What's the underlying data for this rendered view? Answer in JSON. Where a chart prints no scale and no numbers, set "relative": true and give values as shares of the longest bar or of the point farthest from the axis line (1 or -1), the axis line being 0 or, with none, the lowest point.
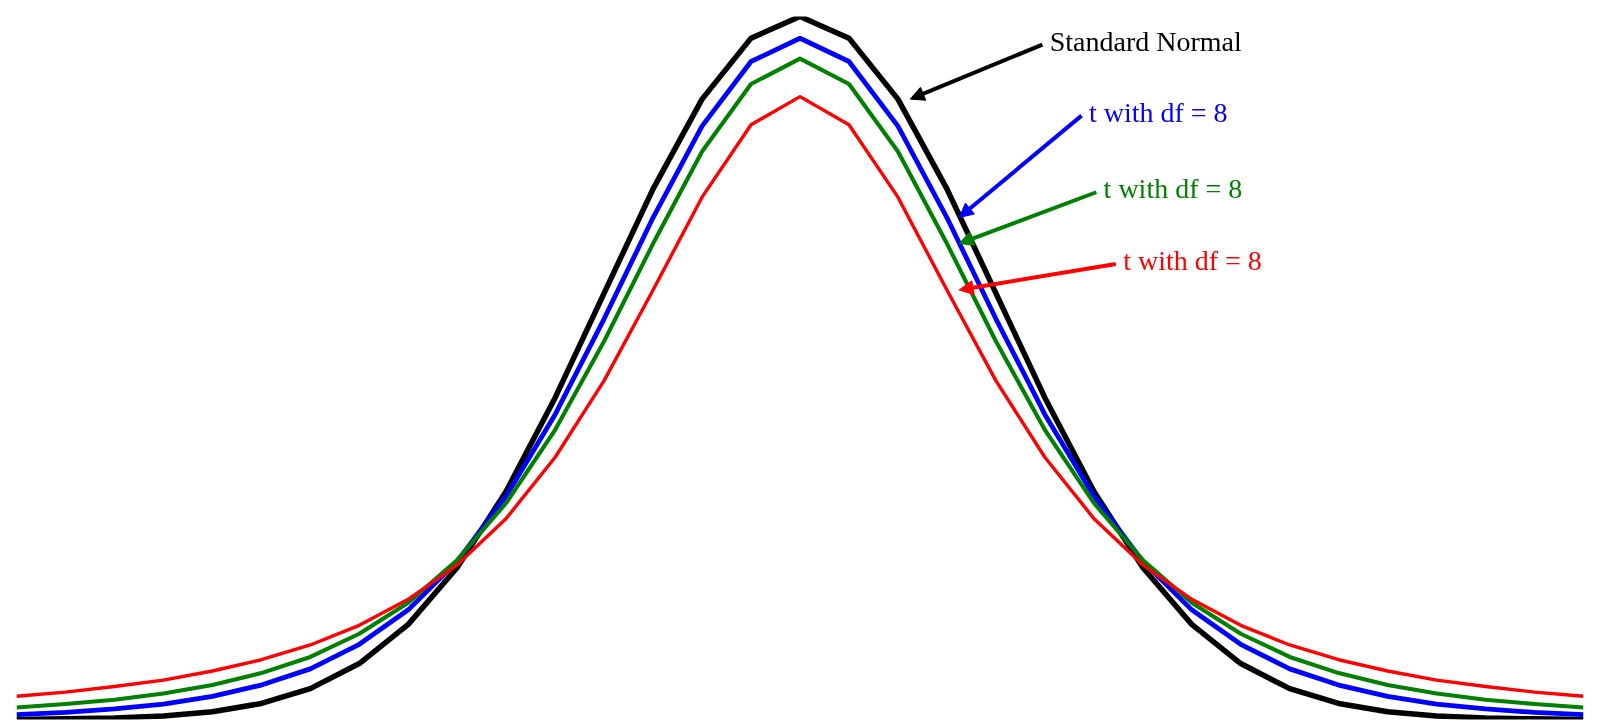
{
  "chart_data": {
    "type": "line",
    "relative": true,
    "categories": [
      null,
      null,
      null,
      null,
      null,
      null,
      null,
      null,
      null,
      null,
      null,
      null,
      null,
      null,
      null,
      null,
      null,
      null,
      null,
      null,
      null,
      null,
      null,
      null,
      null,
      null,
      null,
      null,
      null,
      null,
      null,
      null,
      null
    ],
    "series": [
      {
        "color": "#000000",
        "values": [
          0.0,
          0.0009,
          0.0022,
          0.0051,
          0.0111,
          0.0228,
          0.0439,
          0.0796,
          0.1353,
          0.2163,
          0.3247,
          0.4578,
          0.6065,
          0.7548,
          0.8825,
          0.9692,
          1.0,
          0.9692,
          0.8825,
          0.7548,
          0.6065,
          0.4578,
          0.3247,
          0.2163,
          0.1353,
          0.0796,
          0.0439,
          0.0228,
          0.0111,
          0.0051,
          0.0022,
          0.0009,
          0.0
        ]
      },
      {
        "color": "#0000ff",
        "values": [
          0.007,
          0.01,
          0.015,
          0.022,
          0.033,
          0.049,
          0.072,
          0.107,
          0.156,
          0.225,
          0.318,
          0.434,
          0.57,
          0.714,
          0.844,
          0.936,
          0.969,
          0.936,
          0.844,
          0.714,
          0.57,
          0.434,
          0.318,
          0.225,
          0.156,
          0.107,
          0.072,
          0.049,
          0.033,
          0.022,
          0.015,
          0.01,
          0.007
        ]
      },
      {
        "color": "#008000",
        "values": [
          0.017,
          0.022,
          0.028,
          0.037,
          0.049,
          0.066,
          0.089,
          0.122,
          0.166,
          0.227,
          0.308,
          0.412,
          0.538,
          0.677,
          0.808,
          0.904,
          0.94,
          0.904,
          0.808,
          0.677,
          0.538,
          0.412,
          0.308,
          0.227,
          0.166,
          0.122,
          0.089,
          0.066,
          0.049,
          0.037,
          0.028,
          0.022,
          0.017
        ]
      },
      {
        "color": "#ff0000",
        "values": [
          0.033,
          0.039,
          0.047,
          0.056,
          0.069,
          0.085,
          0.106,
          0.134,
          0.171,
          0.22,
          0.286,
          0.373,
          0.482,
          0.611,
          0.743,
          0.846,
          0.886,
          0.846,
          0.743,
          0.611,
          0.482,
          0.373,
          0.286,
          0.22,
          0.171,
          0.134,
          0.106,
          0.085,
          0.069,
          0.056,
          0.047,
          0.039,
          0.033
        ]
      }
    ],
    "annotations": [
      "Standard Normal",
      "t  with df = 8",
      "t  with df = 8",
      "t  with df = 8"
    ]
  }
}
